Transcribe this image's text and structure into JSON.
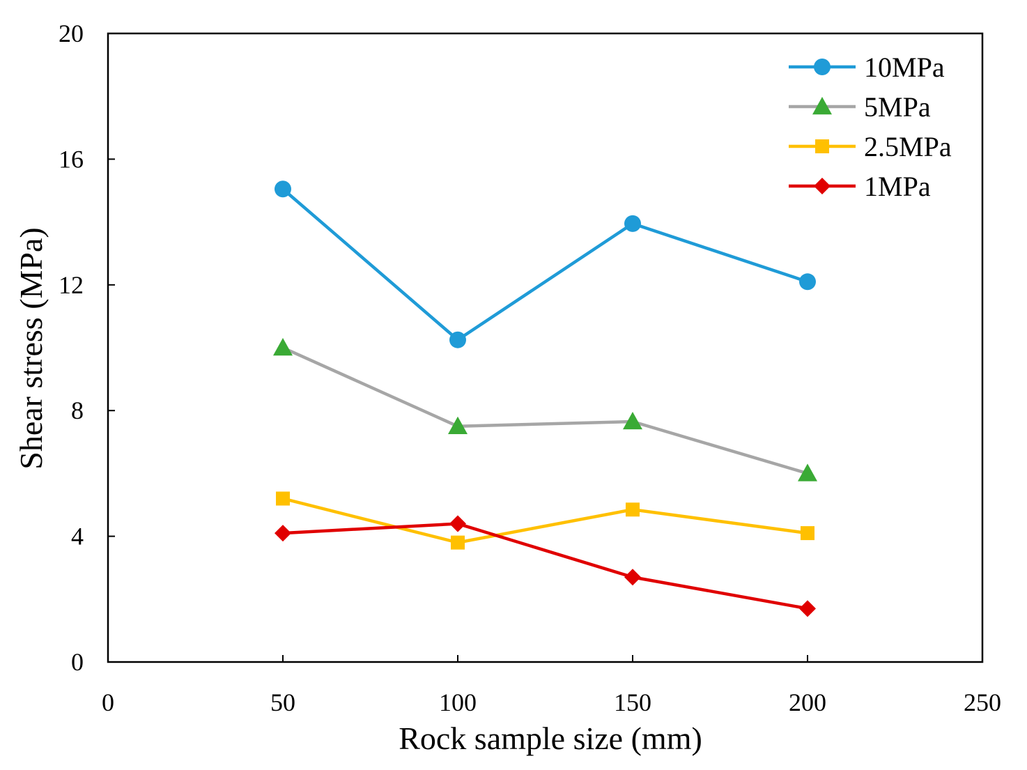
{
  "chart_data": {
    "type": "line",
    "title": "",
    "xlabel": "Rock sample size (mm)",
    "ylabel": "Shear stress (MPa)",
    "xlim": [
      0,
      250
    ],
    "ylim": [
      0,
      20
    ],
    "xticks": [
      0,
      50,
      100,
      150,
      200,
      250
    ],
    "yticks": [
      0,
      4,
      8,
      12,
      16,
      20
    ],
    "xtick_labels": [
      "0",
      "50",
      "100",
      "150",
      "200",
      "250"
    ],
    "ytick_labels": [
      "0",
      "4",
      "8",
      "12",
      "16",
      "20"
    ],
    "grid": false,
    "legend_position": "top-right",
    "x": [
      50,
      100,
      150,
      200
    ],
    "series": [
      {
        "name": "10MPa",
        "values": [
          15.05,
          10.25,
          13.95,
          12.1
        ],
        "color": "#1f9bd7",
        "marker": "circle"
      },
      {
        "name": "5MPa",
        "values": [
          10.0,
          7.5,
          7.65,
          6.0
        ],
        "color": "#a6a6a6",
        "marker_color": "#3aaa35",
        "marker": "triangle"
      },
      {
        "name": "2.5MPa",
        "values": [
          5.2,
          3.8,
          4.85,
          4.1
        ],
        "color": "#ffc000",
        "marker": "square"
      },
      {
        "name": "1MPa",
        "values": [
          4.1,
          4.4,
          2.7,
          1.7
        ],
        "color": "#e00000",
        "marker": "diamond"
      }
    ]
  }
}
